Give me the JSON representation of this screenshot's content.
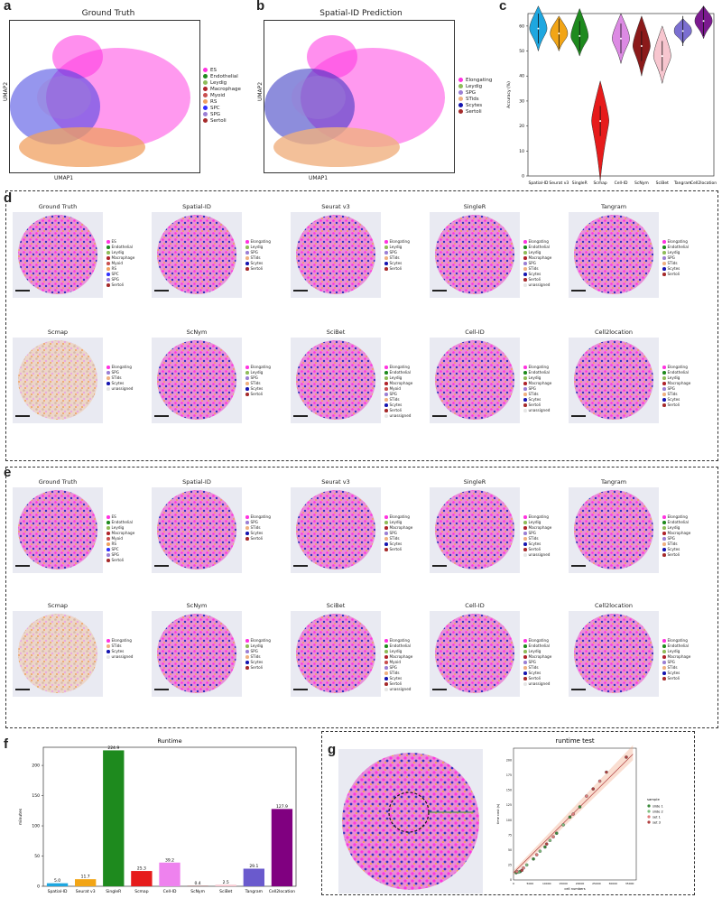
{
  "panels": {
    "a": {
      "label": "a",
      "title": "Ground Truth",
      "xlabel": "UMAP1",
      "ylabel": "UMAP2",
      "legend": [
        "ES",
        "Endothelial",
        "Leydig",
        "Macrophage",
        "Myoid",
        "RS",
        "SPC",
        "SPG",
        "Sertoli"
      ]
    },
    "b": {
      "label": "b",
      "title": "Spatial-ID Prediction",
      "xlabel": "UMAP1",
      "ylabel": "UMAP2",
      "legend": [
        "Elongating",
        "Leydig",
        "SPG",
        "STids",
        "Scytes",
        "Sertoli"
      ]
    },
    "c": {
      "label": "c"
    },
    "d": {
      "label": "d"
    },
    "e": {
      "label": "e"
    },
    "f": {
      "label": "f"
    },
    "g": {
      "label": "g",
      "title": "runtime test",
      "xlabel": "cell numbers",
      "ylabel": "time cost (s)",
      "legend_title": "sample",
      "legend": [
        "slide 1",
        "slide 2",
        "set 1",
        "set 3"
      ]
    }
  },
  "colors": {
    "ES": "#ff33e0",
    "Endothelial": "#1e8a1e",
    "Leydig": "#8fbc5a",
    "Macrophage": "#b0232a",
    "Myoid": "#c94f4f",
    "RS": "#f0a060",
    "SPC": "#3030ff",
    "SPG": "#9b7fd4",
    "Sertoli": "#a52a2a",
    "Elongating": "#ff33e0",
    "STids": "#f0b080",
    "Scytes": "#1515b0",
    "unassigned": "#e6e6e6"
  },
  "tiles_d_row1": [
    {
      "title": "Ground Truth",
      "legend": [
        "ES",
        "Endothelial",
        "Leydig",
        "Macrophage",
        "Myoid",
        "RS",
        "SPC",
        "SPG",
        "Sertoli"
      ]
    },
    {
      "title": "Spatial-ID",
      "legend": [
        "Elongating",
        "Leydig",
        "SPG",
        "STids",
        "Scytes",
        "Sertoli"
      ]
    },
    {
      "title": "Seurat v3",
      "legend": [
        "Elongating",
        "Leydig",
        "SPG",
        "STids",
        "Scytes",
        "Sertoli"
      ]
    },
    {
      "title": "SingleR",
      "legend": [
        "Elongating",
        "Endothelial",
        "Leydig",
        "Macrophage",
        "SPG",
        "STids",
        "Scytes",
        "Sertoli",
        "unassigned"
      ]
    },
    {
      "title": "Tangram",
      "legend": [
        "Elongating",
        "Endothelial",
        "Leydig",
        "SPG",
        "STids",
        "Scytes",
        "Sertoli"
      ]
    }
  ],
  "tiles_d_row2": [
    {
      "title": "Scmap",
      "legend": [
        "Elongating",
        "SPG",
        "STids",
        "Scytes",
        "unassigned"
      ]
    },
    {
      "title": "ScNym",
      "legend": [
        "Elongating",
        "Leydig",
        "SPG",
        "STids",
        "Scytes",
        "Sertoli"
      ]
    },
    {
      "title": "SciBet",
      "legend": [
        "Elongating",
        "Endothelial",
        "Leydig",
        "Macrophage",
        "Myoid",
        "SPG",
        "STids",
        "Scytes",
        "Sertoli",
        "unassigned"
      ]
    },
    {
      "title": "Cell-ID",
      "legend": [
        "Elongating",
        "Endothelial",
        "Leydig",
        "Macrophage",
        "SPG",
        "STids",
        "Scytes",
        "Sertoli",
        "unassigned"
      ]
    },
    {
      "title": "Cell2location",
      "legend": [
        "Elongating",
        "Endothelial",
        "Leydig",
        "Macrophage",
        "SPG",
        "STids",
        "Scytes",
        "Sertoli"
      ]
    }
  ],
  "tiles_e_row1": [
    {
      "title": "Ground Truth",
      "legend": [
        "ES",
        "Endothelial",
        "Leydig",
        "Macrophage",
        "Myoid",
        "RS",
        "SPC",
        "SPG",
        "Sertoli"
      ]
    },
    {
      "title": "Spatial-ID",
      "legend": [
        "Elongating",
        "SPG",
        "STids",
        "Scytes",
        "Sertoli"
      ]
    },
    {
      "title": "Seurat v3",
      "legend": [
        "Elongating",
        "Leydig",
        "Macrophage",
        "SPG",
        "STids",
        "Scytes",
        "Sertoli"
      ]
    },
    {
      "title": "SingleR",
      "legend": [
        "Elongating",
        "Leydig",
        "Macrophage",
        "SPG",
        "STids",
        "Scytes",
        "Sertoli",
        "unassigned"
      ]
    },
    {
      "title": "Tangram",
      "legend": [
        "Elongating",
        "Endothelial",
        "Leydig",
        "Macrophage",
        "SPG",
        "STids",
        "Scytes",
        "Sertoli"
      ]
    }
  ],
  "tiles_e_row2": [
    {
      "title": "Scmap",
      "legend": [
        "Elongating",
        "STids",
        "Scytes",
        "unassigned"
      ]
    },
    {
      "title": "ScNym",
      "legend": [
        "Elongating",
        "Leydig",
        "SPG",
        "STids",
        "Scytes",
        "Sertoli"
      ]
    },
    {
      "title": "SciBet",
      "legend": [
        "Elongating",
        "Endothelial",
        "Leydig",
        "Macrophage",
        "Myoid",
        "SPG",
        "STids",
        "Scytes",
        "Sertoli",
        "unassigned"
      ]
    },
    {
      "title": "Cell-ID",
      "legend": [
        "Elongating",
        "Endothelial",
        "Leydig",
        "Macrophage",
        "SPG",
        "STids",
        "Scytes",
        "Sertoli",
        "unassigned"
      ]
    },
    {
      "title": "Cell2location",
      "legend": [
        "Elongating",
        "Endothelial",
        "Leydig",
        "Macrophage",
        "SPG",
        "STids",
        "Scytes",
        "Sertoli"
      ]
    }
  ],
  "chart_data": [
    {
      "type": "violin",
      "ylabel": "Accuracy (%)",
      "ylim": [
        0,
        65
      ],
      "yticks": [
        0,
        10,
        20,
        30,
        40,
        50,
        60
      ],
      "categories": [
        "Spatial-ID",
        "Seurat v3",
        "SingleR",
        "Scmap",
        "Cell-ID",
        "ScNym",
        "SciBet",
        "Tangram",
        "Cell2location"
      ],
      "medians": [
        59,
        57,
        56,
        22,
        55,
        52,
        48,
        58,
        62
      ],
      "ranges": [
        [
          50,
          68
        ],
        [
          50,
          64
        ],
        [
          48,
          67
        ],
        [
          -2,
          38
        ],
        [
          45,
          65
        ],
        [
          40,
          64
        ],
        [
          37,
          60
        ],
        [
          53,
          63
        ],
        [
          55,
          68
        ]
      ],
      "colors": [
        "#1ea7e0",
        "#f2a516",
        "#1e8a1e",
        "#e61b1b",
        "#dc8ae3",
        "#8b1a1a",
        "#f7c6cf",
        "#7b6fd1",
        "#7b1a8f"
      ]
    },
    {
      "type": "bar",
      "title": "Runtime",
      "ylabel": "minutes",
      "ylim": [
        0,
        230
      ],
      "yticks": [
        0,
        50,
        100,
        150,
        200
      ],
      "categories": [
        "Spatial-ID",
        "Seurat v3",
        "SingleR",
        "Scmap",
        "Cell-ID",
        "ScNym",
        "SciBet",
        "Tangram",
        "Cell2location"
      ],
      "values": [
        5.0,
        11.7,
        224.9,
        25.3,
        39.2,
        0.4,
        2.5,
        29.1,
        127.9
      ],
      "value_labels": [
        "5.0",
        "11.7",
        "224.9",
        "25.3",
        "39.2",
        "0.4",
        "2.5",
        "29.1",
        "127.9"
      ],
      "colors": [
        "#1ea7e0",
        "#f2a516",
        "#1e8a1e",
        "#e61b1b",
        "#ee82ee",
        "#8b1a1a",
        "#f7c6cf",
        "#6a5acd",
        "#800080"
      ]
    },
    {
      "type": "scatter",
      "title": "runtime test",
      "xlabel": "cell numbers",
      "ylabel": "time cost (s)",
      "xlim": [
        0,
        37000
      ],
      "ylim": [
        0,
        220
      ],
      "xticks": [
        0,
        5000,
        10000,
        15000,
        20000,
        25000,
        30000,
        35000
      ],
      "xtick_labels": [
        "0",
        "5000",
        "10000",
        "15000",
        "20000",
        "25000",
        "30000",
        "35000"
      ],
      "yticks": [
        0,
        25,
        50,
        75,
        100,
        125,
        150,
        175,
        200
      ],
      "series": [
        {
          "name": "slide 1",
          "color": "#3b8a3b",
          "x": [
            800,
            2000,
            6000,
            9500,
            13000,
            17000,
            20000
          ],
          "y": [
            12,
            14,
            35,
            55,
            78,
            105,
            122
          ]
        },
        {
          "name": "slide 2",
          "color": "#7fbf7f",
          "x": [
            1500,
            4000,
            8000,
            11000,
            15000
          ],
          "y": [
            13,
            25,
            48,
            66,
            92
          ]
        },
        {
          "name": "set 1",
          "color": "#e07b7b",
          "x": [
            1000,
            3000,
            7000,
            12000,
            18000,
            22000,
            26000
          ],
          "y": [
            14,
            20,
            42,
            72,
            110,
            140,
            165
          ]
        },
        {
          "name": "set 3",
          "color": "#b04040",
          "x": [
            2500,
            10000,
            24000,
            28000,
            34000
          ],
          "y": [
            16,
            60,
            152,
            180,
            205
          ]
        }
      ]
    }
  ]
}
